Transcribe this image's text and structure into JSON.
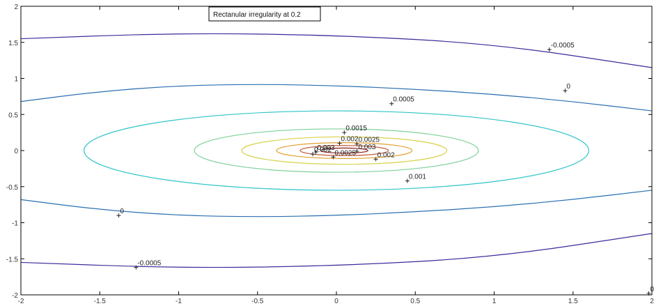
{
  "chart_data": {
    "type": "contour",
    "title": "Rectanular irregularity at 0.2",
    "xlabel": "",
    "ylabel": "",
    "xlim": [
      -2,
      2
    ],
    "ylim": [
      -2,
      2
    ],
    "x_ticks": [
      "-2",
      "-1.5",
      "-1",
      "-0.5",
      "0",
      "0.5",
      "1",
      "1.5",
      "2"
    ],
    "y_ticks": [
      "2",
      "1.5",
      "1",
      "0.5",
      "0",
      "-0.5",
      "-1",
      "-1.5",
      "-2"
    ],
    "grid": false,
    "legend": "none",
    "series": [
      {
        "level": -0.0005,
        "color": "#3a2a9a",
        "points": [
          [
            -2,
            1.55
          ],
          [
            -1.0,
            1.63
          ],
          [
            0,
            1.6
          ],
          [
            1.0,
            1.48
          ],
          [
            2,
            1.15
          ]
        ]
      },
      {
        "level": -0.0005,
        "color": "#3a2a9a",
        "points": [
          [
            -2,
            -1.55
          ],
          [
            -1.0,
            -1.63
          ],
          [
            0,
            -1.6
          ],
          [
            1.0,
            -1.48
          ],
          [
            2,
            -1.15
          ]
        ]
      },
      {
        "level": 0,
        "color": "#2a6fb0",
        "points": [
          [
            -2,
            0.68
          ],
          [
            -1.5,
            0.82
          ],
          [
            -1.0,
            0.9
          ],
          [
            -0.5,
            0.92
          ],
          [
            0,
            0.9
          ],
          [
            0.5,
            0.85
          ],
          [
            1.0,
            0.78
          ],
          [
            1.5,
            0.68
          ],
          [
            2,
            0.55
          ]
        ]
      },
      {
        "level": 0,
        "color": "#2a6fb0",
        "points": [
          [
            -2,
            -0.68
          ],
          [
            -1.5,
            -0.82
          ],
          [
            -1.0,
            -0.9
          ],
          [
            -0.5,
            -0.92
          ],
          [
            0,
            -0.9
          ],
          [
            0.5,
            -0.85
          ],
          [
            1.0,
            -0.78
          ],
          [
            1.5,
            -0.68
          ],
          [
            2,
            -0.55
          ]
        ]
      },
      {
        "level": 0.0005,
        "color": "#2ec4c9",
        "closed": true,
        "center": [
          0,
          0
        ],
        "rx": 1.6,
        "ry": 0.55
      },
      {
        "level": 0.001,
        "color": "#7fd09a",
        "closed": true,
        "center": [
          0,
          0
        ],
        "rx": 0.9,
        "ry": 0.3
      },
      {
        "level": 0.0015,
        "color": "#d6d24a",
        "closed": true,
        "center": [
          0.05,
          0
        ],
        "rx": 0.65,
        "ry": 0.19
      },
      {
        "level": 0.002,
        "color": "#e0a030",
        "closed": true,
        "center": [
          0.05,
          0
        ],
        "rx": 0.43,
        "ry": 0.11
      },
      {
        "level": 0.0025,
        "color": "#c05a3a",
        "closed": true,
        "center": [
          0.05,
          0
        ],
        "rx": 0.28,
        "ry": 0.07
      },
      {
        "level": 0.003,
        "color": "#8a1a1a",
        "closed": true,
        "center": [
          0.05,
          0
        ],
        "rx": 0.15,
        "ry": 0.035
      }
    ],
    "contour_labels": [
      {
        "text": "-0.0005",
        "x": 1.35,
        "y": 1.4
      },
      {
        "text": "0",
        "x": 1.45,
        "y": 0.83
      },
      {
        "text": "0.0005",
        "x": 0.35,
        "y": 0.65
      },
      {
        "text": "0.0015",
        "x": 0.05,
        "y": 0.25
      },
      {
        "text": "0.002",
        "x": 0.02,
        "y": 0.1
      },
      {
        "text": "0.0025",
        "x": 0.13,
        "y": 0.09
      },
      {
        "text": "0.003",
        "x": -0.13,
        "y": -0.02
      },
      {
        "text": "0.003",
        "x": 0.13,
        "y": -0.01
      },
      {
        "text": "0.002",
        "x": -0.15,
        "y": -0.05
      },
      {
        "text": "0.0025",
        "x": -0.02,
        "y": -0.09
      },
      {
        "text": "0.002",
        "x": 0.25,
        "y": -0.12
      },
      {
        "text": "0.001",
        "x": 0.45,
        "y": -0.42
      },
      {
        "text": "0",
        "x": -1.38,
        "y": -0.9
      },
      {
        "text": "-0.0005",
        "x": -1.27,
        "y": -1.62
      },
      {
        "text": "0",
        "x": 1.98,
        "y": -1.98
      }
    ]
  }
}
